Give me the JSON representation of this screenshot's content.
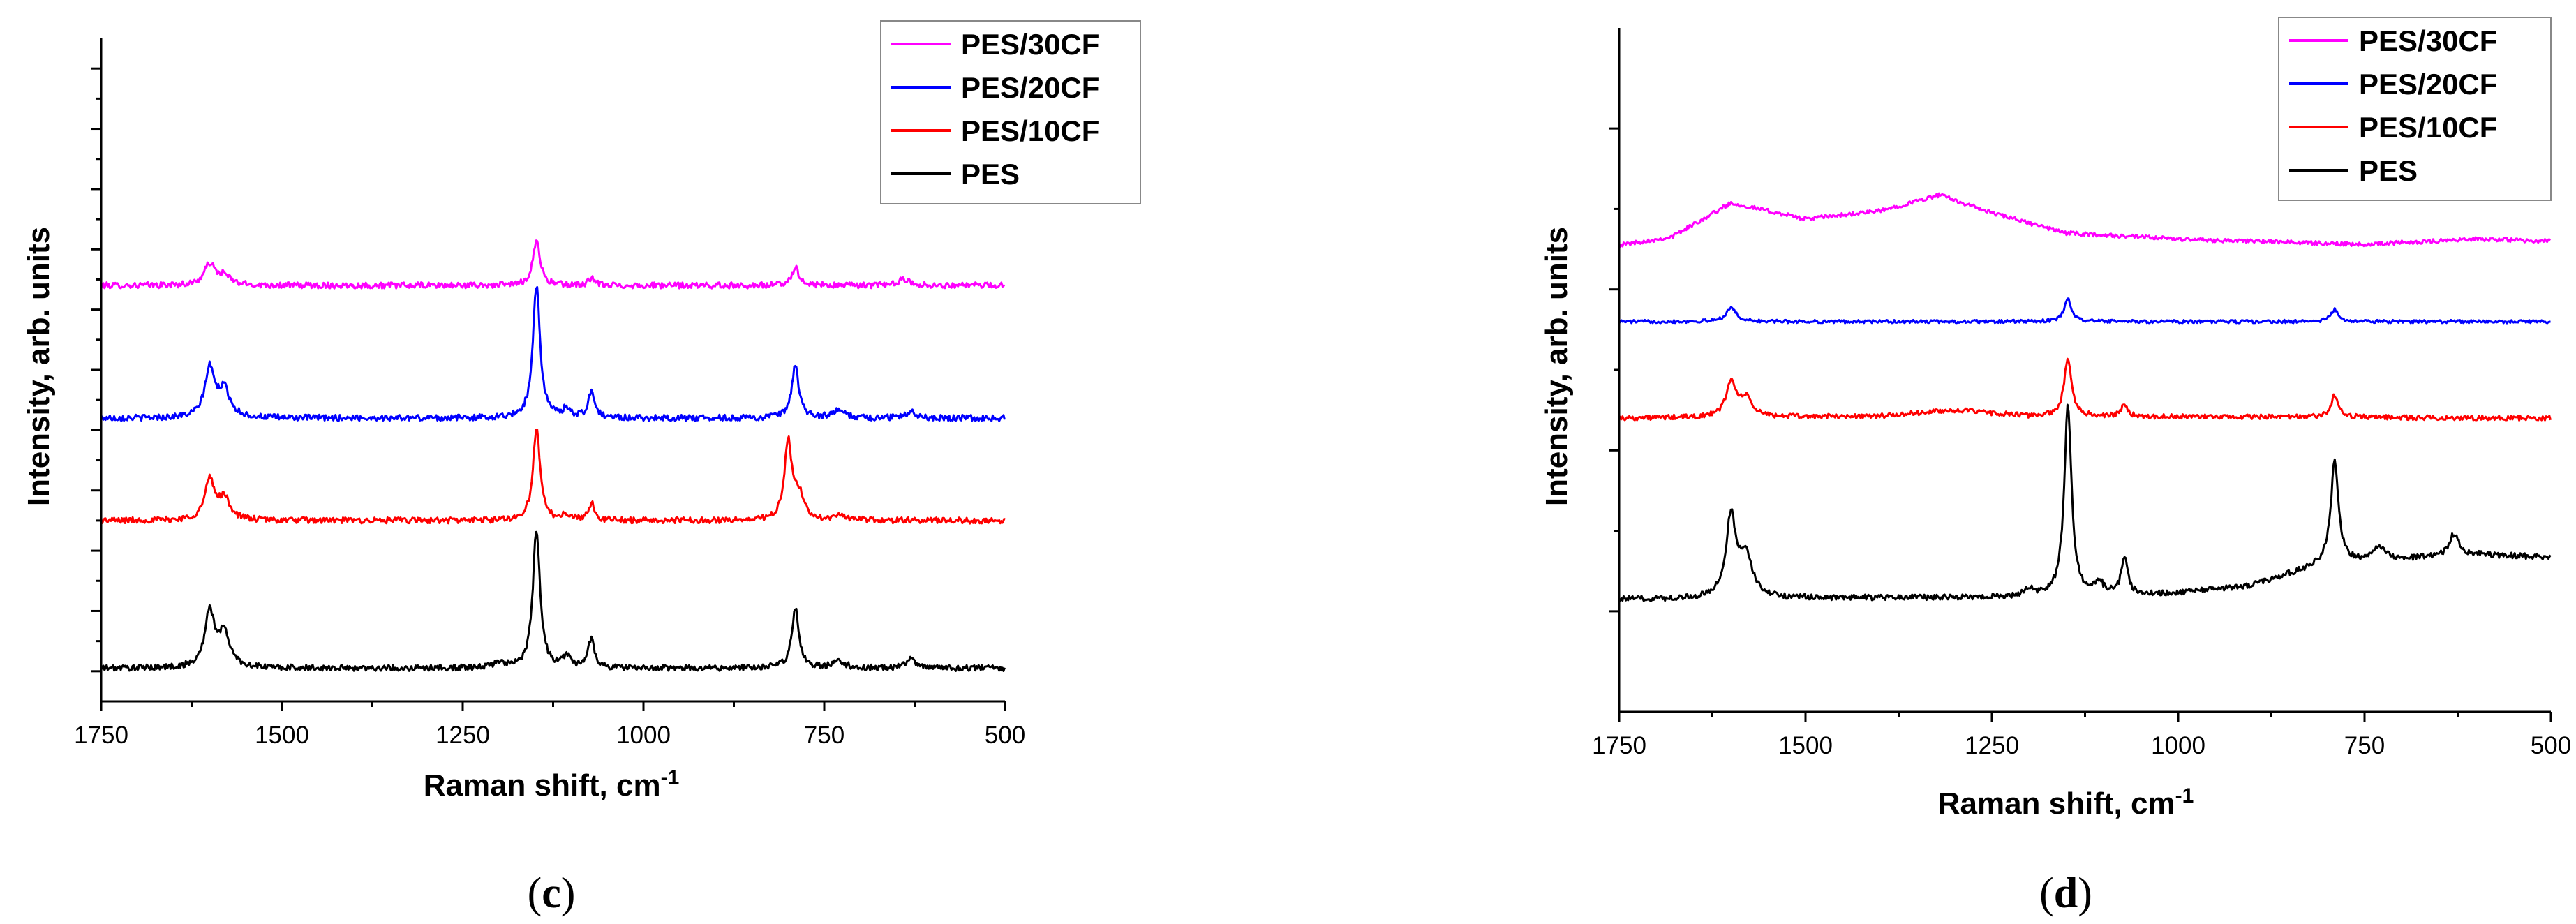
{
  "chart_data": [
    {
      "panel": "c",
      "type": "line",
      "xlabel": "Raman shift, cm",
      "xlabel_superscript": "-1",
      "ylabel": "Intensity, arb. units",
      "xlim": [
        1750,
        500
      ],
      "ylim": [
        -0.5,
        10.5
      ],
      "x_ticks": [
        1750,
        1500,
        1250,
        1000,
        750,
        500
      ],
      "y_ticks": [
        0,
        1,
        2,
        3,
        4,
        5,
        6,
        7,
        8,
        9,
        10
      ],
      "y_tick_labels": false,
      "legend_position": "top-right",
      "series": [
        {
          "name": "PES/30CF",
          "color": "#ff00ff",
          "baseline": 6.4,
          "noise": 0.05,
          "peaks": [
            [
              1600,
              0.35,
              9
            ],
            [
              1580,
              0.15,
              10
            ],
            [
              1148,
              0.75,
              6
            ],
            [
              1072,
              0.12,
              5
            ],
            [
              790,
              0.3,
              6
            ],
            [
              640,
              0.1,
              10
            ]
          ]
        },
        {
          "name": "PES/20CF",
          "color": "#0000ff",
          "baseline": 4.2,
          "noise": 0.05,
          "peaks": [
            [
              1600,
              0.8,
              8
            ],
            [
              1580,
              0.45,
              10
            ],
            [
              1148,
              2.2,
              6
            ],
            [
              1106,
              0.15,
              6
            ],
            [
              1072,
              0.45,
              5
            ],
            [
              790,
              0.85,
              6
            ],
            [
              730,
              0.12,
              10
            ],
            [
              630,
              0.12,
              8
            ]
          ]
        },
        {
          "name": "PES/10CF",
          "color": "#ff0000",
          "baseline": 2.5,
          "noise": 0.05,
          "peaks": [
            [
              1600,
              0.65,
              8
            ],
            [
              1580,
              0.35,
              10
            ],
            [
              1148,
              1.5,
              6
            ],
            [
              1106,
              0.1,
              6
            ],
            [
              1072,
              0.28,
              5
            ],
            [
              800,
              1.3,
              6
            ],
            [
              785,
              0.4,
              8
            ],
            [
              730,
              0.08,
              10
            ]
          ]
        },
        {
          "name": "PES",
          "color": "#000000",
          "baseline": 0.05,
          "noise": 0.05,
          "peaks": [
            [
              1600,
              0.9,
              8
            ],
            [
              1580,
              0.55,
              10
            ],
            [
              1200,
              0.1,
              8
            ],
            [
              1148,
              2.3,
              6
            ],
            [
              1106,
              0.2,
              6
            ],
            [
              1072,
              0.5,
              5
            ],
            [
              790,
              1.0,
              6
            ],
            [
              730,
              0.12,
              10
            ],
            [
              630,
              0.15,
              8
            ]
          ]
        }
      ]
    },
    {
      "panel": "d",
      "type": "line",
      "xlabel": "Raman shift, cm",
      "xlabel_superscript": "-1",
      "ylabel": "Intensity, arb. units",
      "xlim": [
        1750,
        500
      ],
      "ylim": [
        -2.5,
        14.5
      ],
      "x_ticks": [
        1750,
        1500,
        1250,
        1000,
        750,
        500
      ],
      "y_ticks": [
        0,
        4,
        8,
        12
      ],
      "y_tick_labels": false,
      "legend_position": "top-right",
      "series": [
        {
          "name": "PES/30CF",
          "color": "#ff00ff",
          "baseline": 9.1,
          "noise": 0.05,
          "trend": [
            [
              1750,
              0
            ],
            [
              1680,
              0.2
            ],
            [
              1600,
              1.05
            ],
            [
              1500,
              0.65
            ],
            [
              1400,
              0.85
            ],
            [
              1320,
              1.25
            ],
            [
              1250,
              0.8
            ],
            [
              1150,
              0.3
            ],
            [
              1000,
              0.15
            ],
            [
              750,
              0.02
            ],
            [
              600,
              0.15
            ],
            [
              500,
              0.1
            ]
          ],
          "peaks": []
        },
        {
          "name": "PES/20CF",
          "color": "#0000ff",
          "baseline": 7.2,
          "noise": 0.04,
          "peaks": [
            [
              1600,
              0.35,
              8
            ],
            [
              1148,
              0.55,
              6
            ],
            [
              790,
              0.3,
              6
            ]
          ]
        },
        {
          "name": "PES/10CF",
          "color": "#ff0000",
          "baseline": 4.8,
          "noise": 0.06,
          "trend": [
            [
              1750,
              0
            ],
            [
              1400,
              0.05
            ],
            [
              1300,
              0.2
            ],
            [
              1200,
              0.05
            ],
            [
              500,
              0
            ]
          ],
          "peaks": [
            [
              1600,
              0.85,
              8
            ],
            [
              1580,
              0.45,
              10
            ],
            [
              1148,
              1.45,
              6
            ],
            [
              1072,
              0.3,
              5
            ],
            [
              790,
              0.55,
              6
            ]
          ]
        },
        {
          "name": "PES",
          "color": "#000000",
          "baseline": 0.3,
          "noise": 0.07,
          "trend": [
            [
              1750,
              0
            ],
            [
              1250,
              0.05
            ],
            [
              1000,
              0.15
            ],
            [
              900,
              0.35
            ],
            [
              800,
              0.9
            ],
            [
              700,
              1.0
            ],
            [
              600,
              1.1
            ],
            [
              500,
              1.05
            ]
          ],
          "peaks": [
            [
              1600,
              2.0,
              8
            ],
            [
              1580,
              1.05,
              10
            ],
            [
              1200,
              0.2,
              6
            ],
            [
              1148,
              4.7,
              6
            ],
            [
              1106,
              0.3,
              6
            ],
            [
              1072,
              0.9,
              5
            ],
            [
              790,
              2.55,
              6
            ],
            [
              730,
              0.3,
              10
            ],
            [
              630,
              0.55,
              8
            ]
          ]
        }
      ]
    }
  ]
}
